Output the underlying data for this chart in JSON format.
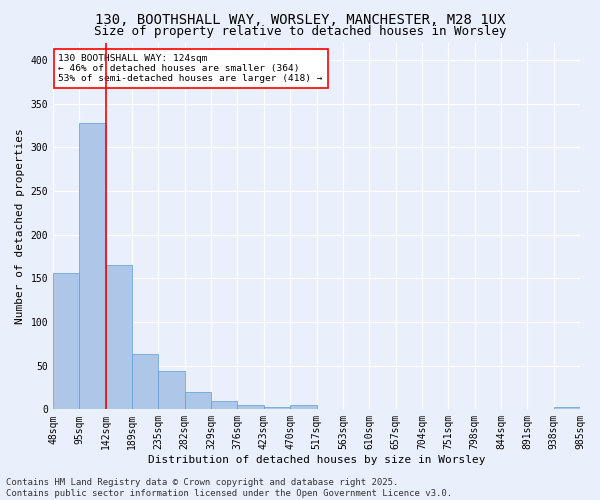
{
  "title1": "130, BOOTHSHALL WAY, WORSLEY, MANCHESTER, M28 1UX",
  "title2": "Size of property relative to detached houses in Worsley",
  "xlabel": "Distribution of detached houses by size in Worsley",
  "ylabel": "Number of detached properties",
  "footer1": "Contains HM Land Registry data © Crown copyright and database right 2025.",
  "footer2": "Contains public sector information licensed under the Open Government Licence v3.0.",
  "annotation_title": "130 BOOTHSHALL WAY: 124sqm",
  "annotation_line1": "← 46% of detached houses are smaller (364)",
  "annotation_line2": "53% of semi-detached houses are larger (418) →",
  "bar_values": [
    156,
    328,
    165,
    63,
    44,
    20,
    9,
    5,
    3,
    5,
    0,
    0,
    0,
    0,
    0,
    0,
    0,
    0,
    0,
    3
  ],
  "categories": [
    "48sqm",
    "95sqm",
    "142sqm",
    "189sqm",
    "235sqm",
    "282sqm",
    "329sqm",
    "376sqm",
    "423sqm",
    "470sqm",
    "517sqm",
    "563sqm",
    "610sqm",
    "657sqm",
    "704sqm",
    "751sqm",
    "798sqm",
    "844sqm",
    "891sqm",
    "938sqm",
    "985sqm"
  ],
  "bar_color": "#aec6e8",
  "bar_edge_color": "#5a9fd4",
  "vline_x": 1.5,
  "vline_color": "red",
  "ylim": [
    0,
    420
  ],
  "yticks": [
    0,
    50,
    100,
    150,
    200,
    250,
    300,
    350,
    400
  ],
  "bg_color": "#eaf0fb",
  "grid_color": "#ffffff",
  "annotation_box_color": "white",
  "annotation_box_edge": "red",
  "title_fontsize": 10,
  "subtitle_fontsize": 9,
  "axis_label_fontsize": 8,
  "tick_fontsize": 7,
  "footer_fontsize": 6.5
}
